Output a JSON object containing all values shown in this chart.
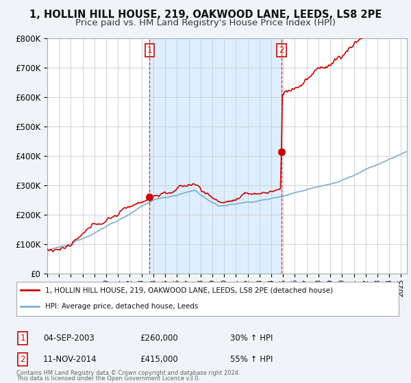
{
  "title": "1, HOLLIN HILL HOUSE, 219, OAKWOOD LANE, LEEDS, LS8 2PE",
  "subtitle": "Price paid vs. HM Land Registry's House Price Index (HPI)",
  "title_fontsize": 10.5,
  "subtitle_fontsize": 9.5,
  "ylim": [
    0,
    800000
  ],
  "yticks": [
    0,
    100000,
    200000,
    300000,
    400000,
    500000,
    600000,
    700000,
    800000
  ],
  "ytick_labels": [
    "£0",
    "£100K",
    "£200K",
    "£300K",
    "£400K",
    "£500K",
    "£600K",
    "£700K",
    "£800K"
  ],
  "background_color": "#f0f4f8",
  "plot_background": "#ffffff",
  "grid_color": "#cccccc",
  "red_color": "#cc0000",
  "blue_color": "#7aaccc",
  "shade_color": "#ddeeff",
  "transaction1_x": 2003.68,
  "transaction1_y": 260000,
  "transaction1_label": "04-SEP-2003",
  "transaction1_price": "£260,000",
  "transaction1_hpi": "30% ↑ HPI",
  "transaction2_x": 2014.86,
  "transaction2_y": 415000,
  "transaction2_label": "11-NOV-2014",
  "transaction2_price": "£415,000",
  "transaction2_hpi": "55% ↑ HPI",
  "legend_line1": "1, HOLLIN HILL HOUSE, 219, OAKWOOD LANE, LEEDS, LS8 2PE (detached house)",
  "legend_line2": "HPI: Average price, detached house, Leeds",
  "footer1": "Contains HM Land Registry data © Crown copyright and database right 2024.",
  "footer2": "This data is licensed under the Open Government Licence v3.0.",
  "xmin": 1995,
  "xmax": 2025.5
}
